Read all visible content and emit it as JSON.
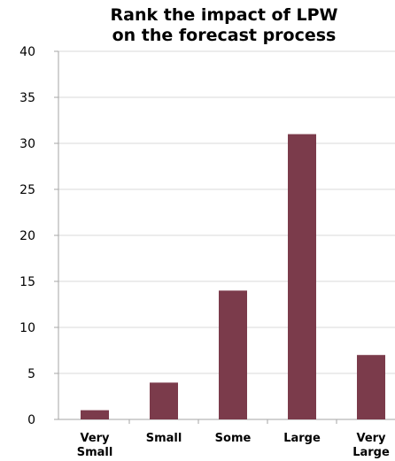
{
  "chart_data": {
    "type": "bar",
    "title_lines": [
      "Rank the impact of LPW",
      "on the forecast process"
    ],
    "categories": [
      [
        "Very",
        "Small"
      ],
      [
        "Small"
      ],
      [
        "Some"
      ],
      [
        "Large"
      ],
      [
        "Very",
        "Large"
      ]
    ],
    "values": [
      1,
      4,
      14,
      31,
      7
    ],
    "ylim": [
      0,
      40
    ],
    "yticks": [
      0,
      5,
      10,
      15,
      20,
      25,
      30,
      35,
      40
    ],
    "grid": true,
    "legend": "none",
    "bar_color": "#7b3b4b",
    "grid_color": "#d9d9d9",
    "axis_color": "#a6a6a6"
  }
}
